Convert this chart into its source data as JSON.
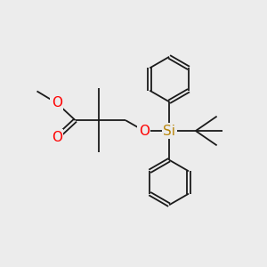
{
  "bg_color": "#ececec",
  "bond_color": "#1a1a1a",
  "bond_lw": 1.3,
  "dbo": 0.06,
  "atom_colors": {
    "O": "#ff0000",
    "Si": "#b8860b"
  },
  "fontsize": 11,
  "figsize": [
    3.0,
    3.0
  ],
  "dpi": 100,
  "xlim": [
    0,
    10
  ],
  "ylim": [
    0,
    10
  ]
}
